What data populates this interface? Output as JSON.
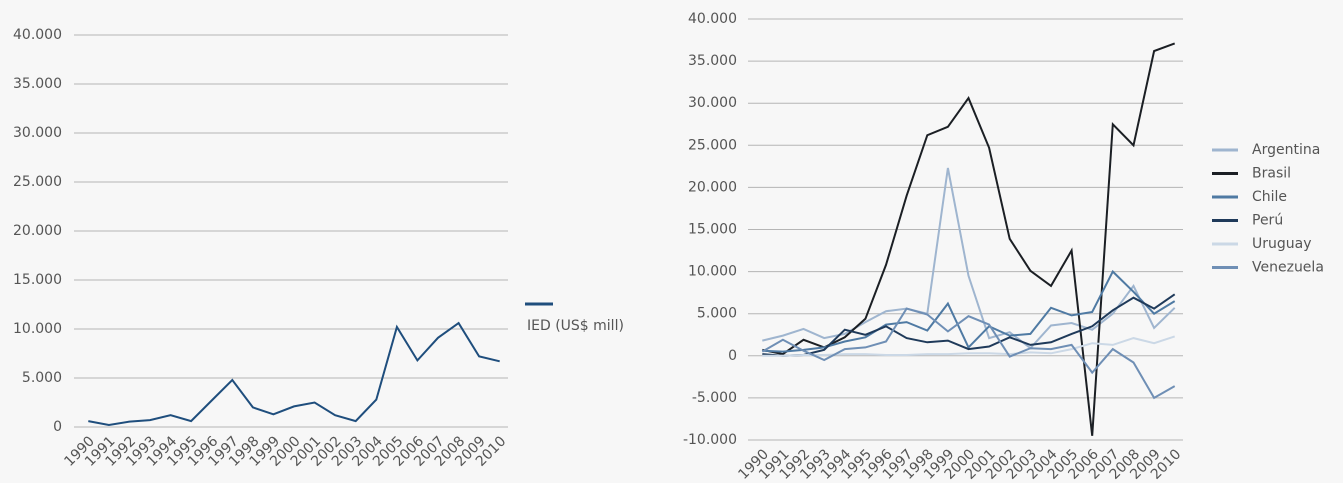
{
  "chart_data": [
    {
      "type": "line",
      "categories": [
        "1990",
        "1991",
        "1992",
        "1993",
        "1994",
        "1995",
        "1996",
        "1997",
        "1998",
        "1999",
        "2000",
        "2001",
        "2002",
        "2003",
        "2004",
        "2005",
        "2006",
        "2007",
        "2008",
        "2009",
        "2010"
      ],
      "series": [
        {
          "name": "IED (US$ mill)",
          "color": "#1f4e7d",
          "values": [
            600,
            200,
            550,
            700,
            1200,
            600,
            2700,
            4800,
            2000,
            1300,
            2100,
            2500,
            1200,
            600,
            2800,
            10200,
            6800,
            9100,
            10600,
            7200,
            6700
          ]
        }
      ],
      "ylim": [
        0,
        40000
      ],
      "yticks": [
        0,
        {
          "value": 5000,
          "label": "5.000"
        },
        {
          "value": 10000,
          "label": "10.000"
        },
        {
          "value": 15000,
          "label": "15.000"
        },
        {
          "value": 20000,
          "label": "20.000"
        },
        {
          "value": 25000,
          "label": "25.000"
        },
        {
          "value": 30000,
          "label": "30.000"
        },
        {
          "value": 35000,
          "label": "35.000"
        },
        {
          "value": 40000,
          "label": "40.000"
        }
      ],
      "grid": true,
      "legend": "right"
    },
    {
      "type": "line",
      "categories": [
        "1990",
        "1991",
        "1992",
        "1993",
        "1994",
        "1995",
        "1996",
        "1997",
        "1998",
        "1999",
        "2000",
        "2001",
        "2002",
        "2003",
        "2004",
        "2005",
        "2006",
        "2007",
        "2008",
        "2009",
        "2010"
      ],
      "series": [
        {
          "name": "Argentina",
          "color": "#9fb5cf",
          "values": [
            1800,
            2400,
            3200,
            2100,
            2600,
            4000,
            5300,
            5600,
            5000,
            22300,
            9500,
            2100,
            2800,
            900,
            3600,
            3900,
            3100,
            5000,
            8300,
            3300,
            5700
          ]
        },
        {
          "name": "Brasil",
          "color": "#1b1f24",
          "values": [
            700,
            200,
            1900,
            1000,
            2200,
            4400,
            10800,
            19000,
            26200,
            27200,
            30600,
            24700,
            13900,
            10100,
            8300,
            12500,
            -9500,
            27500,
            25000,
            36200,
            37100
          ]
        },
        {
          "name": "Chile",
          "color": "#4f7aa3",
          "values": [
            600,
            500,
            700,
            1000,
            1700,
            2200,
            3700,
            4000,
            3000,
            6200,
            1000,
            3500,
            2400,
            2600,
            5700,
            4800,
            5200,
            10000,
            7600,
            5000,
            6500
          ]
        },
        {
          "name": "Perú",
          "color": "#1f3a5a",
          "values": [
            200,
            0,
            100,
            700,
            3100,
            2500,
            3500,
            2100,
            1600,
            1800,
            800,
            1100,
            2200,
            1300,
            1600,
            2600,
            3500,
            5400,
            6900,
            5600,
            7300
          ]
        },
        {
          "name": "Uruguay",
          "color": "#cbd8e6",
          "values": [
            0,
            0,
            100,
            100,
            200,
            200,
            100,
            100,
            200,
            200,
            300,
            300,
            200,
            400,
            300,
            800,
            1500,
            1300,
            2100,
            1500,
            2300
          ]
        },
        {
          "name": "Venezuela",
          "color": "#6f8fb5",
          "values": [
            500,
            1900,
            600,
            -500,
            800,
            1000,
            1700,
            5600,
            4900,
            2900,
            4700,
            3700,
            -100,
            900,
            800,
            1300,
            -2000,
            800,
            -800,
            -5000,
            -3600
          ]
        }
      ],
      "ylim": [
        -10000,
        40000
      ],
      "yticks": [
        {
          "value": -10000,
          "label": "-10.000"
        },
        {
          "value": -5000,
          "label": "-5.000"
        },
        0,
        {
          "value": 5000,
          "label": "5.000"
        },
        {
          "value": 10000,
          "label": "10.000"
        },
        {
          "value": 15000,
          "label": "15.000"
        },
        {
          "value": 20000,
          "label": "20.000"
        },
        {
          "value": 25000,
          "label": "25.000"
        },
        {
          "value": 30000,
          "label": "30.000"
        },
        {
          "value": 35000,
          "label": "35.000"
        },
        {
          "value": 40000,
          "label": "40.000"
        }
      ],
      "grid": true,
      "legend": "right"
    }
  ]
}
